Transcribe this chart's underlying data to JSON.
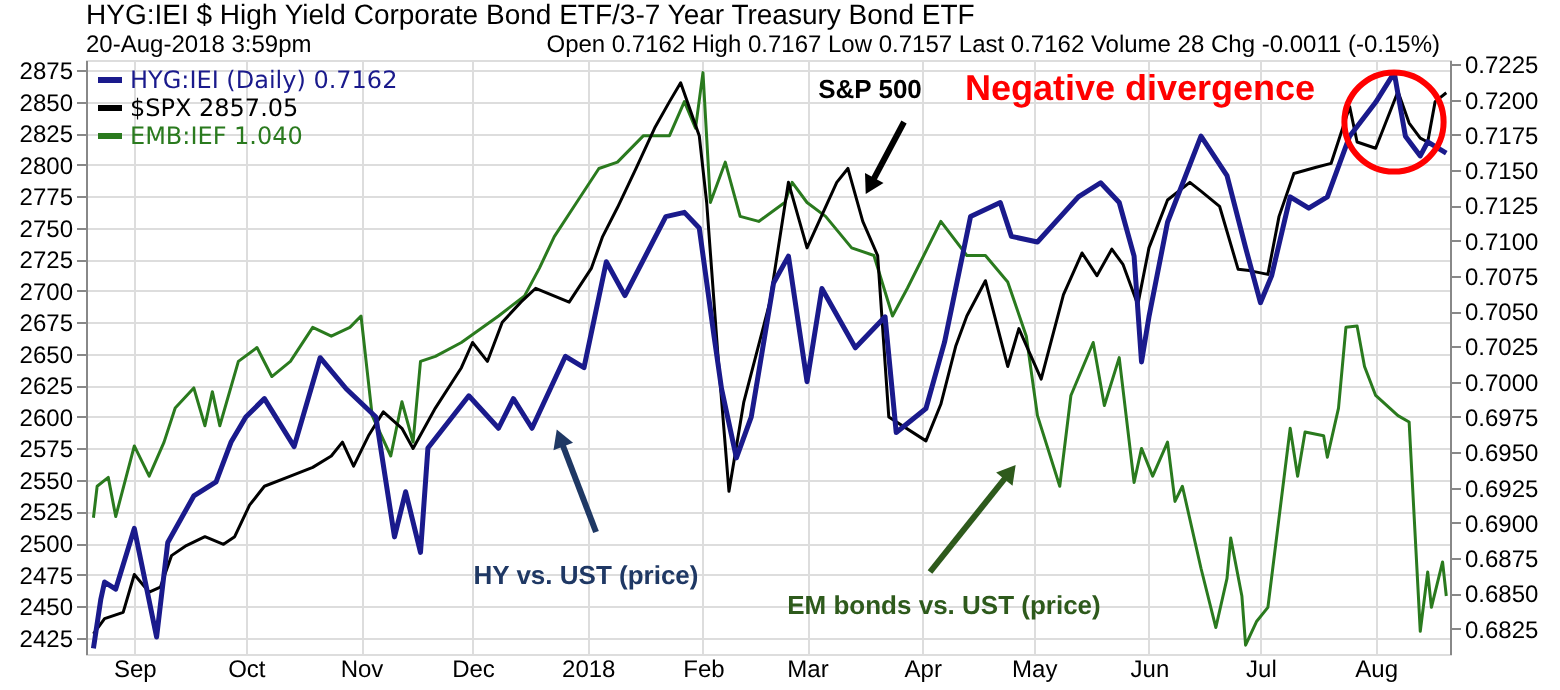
{
  "chart_data": {
    "type": "line",
    "title": "HYG:IEI $ High Yield Corporate Bond ETF/3-7 Year Treasury Bond ETF",
    "xlim": [
      "2017-08-19",
      "2018-08-21"
    ],
    "xticks": [
      {
        "value": "2017-09-01",
        "label": "Sep"
      },
      {
        "value": "2017-10-01",
        "label": "Oct"
      },
      {
        "value": "2017-11-01",
        "label": "Nov"
      },
      {
        "value": "2017-12-01",
        "label": "Dec"
      },
      {
        "value": "2018-01-01",
        "label": "2018"
      },
      {
        "value": "2018-02-01",
        "label": "Feb"
      },
      {
        "value": "2018-03-01",
        "label": "Mar"
      },
      {
        "value": "2018-04-01",
        "label": "Apr"
      },
      {
        "value": "2018-05-01",
        "label": "May"
      },
      {
        "value": "2018-06-01",
        "label": "Jun"
      },
      {
        "value": "2018-07-01",
        "label": "Jul"
      },
      {
        "value": "2018-08-01",
        "label": "Aug"
      }
    ],
    "ylim": [
      2412,
      2883
    ],
    "yticks": [
      2425,
      2450,
      2475,
      2500,
      2525,
      2550,
      2575,
      2600,
      2625,
      2650,
      2675,
      2700,
      2725,
      2750,
      2775,
      2800,
      2825,
      2850,
      2875
    ],
    "y2lim": [
      0.6807,
      0.7228
    ],
    "y2ticks": [
      {
        "value": 0.6825,
        "label": "0.6825"
      },
      {
        "value": 0.685,
        "label": "0.6850"
      },
      {
        "value": 0.6875,
        "label": "0.6875"
      },
      {
        "value": 0.69,
        "label": "0.6900"
      },
      {
        "value": 0.6925,
        "label": "0.6925"
      },
      {
        "value": 0.695,
        "label": "0.6950"
      },
      {
        "value": 0.6975,
        "label": "0.6975"
      },
      {
        "value": 0.7,
        "label": "0.7000"
      },
      {
        "value": 0.7025,
        "label": "0.7025"
      },
      {
        "value": 0.705,
        "label": "0.7050"
      },
      {
        "value": 0.7075,
        "label": "0.7075"
      },
      {
        "value": 0.71,
        "label": "0.7100"
      },
      {
        "value": 0.7125,
        "label": "0.7125"
      },
      {
        "value": 0.715,
        "label": "0.7150"
      },
      {
        "value": 0.7175,
        "label": "0.7175"
      },
      {
        "value": 0.72,
        "label": "0.7200"
      },
      {
        "value": 0.7225,
        "label": "0.7225"
      }
    ],
    "grid": true,
    "legend": "top left",
    "marker": "none",
    "line_style": "solid",
    "series": [
      {
        "name": "EMB:IEF 1.040",
        "color": "#2a7a1e",
        "x": [
          "2017-08-21",
          "2017-08-22",
          "2017-08-25",
          "2017-08-27",
          "2017-09-01",
          "2017-09-05",
          "2017-09-09",
          "2017-09-12",
          "2017-09-17",
          "2017-09-20",
          "2017-09-22",
          "2017-09-24",
          "2017-09-29",
          "2017-10-04",
          "2017-10-08",
          "2017-10-13",
          "2017-10-19",
          "2017-10-24",
          "2017-10-29",
          "2017-11-01",
          "2017-11-04",
          "2017-11-09",
          "2017-11-12",
          "2017-11-15",
          "2017-11-17",
          "2017-11-21",
          "2017-11-28",
          "2017-12-08",
          "2017-12-15",
          "2017-12-19",
          "2017-12-23",
          "2017-12-29",
          "2018-01-04",
          "2018-01-09",
          "2018-01-16",
          "2018-01-23",
          "2018-01-27",
          "2018-01-30",
          "2018-02-01",
          "2018-02-03",
          "2018-02-07",
          "2018-02-11",
          "2018-02-16",
          "2018-02-23",
          "2018-02-25",
          "2018-03-01",
          "2018-03-06",
          "2018-03-13",
          "2018-03-19",
          "2018-03-24",
          "2018-03-28",
          "2018-04-06",
          "2018-04-13",
          "2018-04-18",
          "2018-04-24",
          "2018-04-29",
          "2018-05-02",
          "2018-05-08",
          "2018-05-11",
          "2018-05-17",
          "2018-05-20",
          "2018-05-24",
          "2018-05-28",
          "2018-05-30",
          "2018-06-02",
          "2018-06-06",
          "2018-06-08",
          "2018-06-10",
          "2018-06-15",
          "2018-06-19",
          "2018-06-22",
          "2018-06-23",
          "2018-06-26",
          "2018-06-27",
          "2018-06-30",
          "2018-07-03",
          "2018-07-09",
          "2018-07-11",
          "2018-07-13",
          "2018-07-18",
          "2018-07-19",
          "2018-07-22",
          "2018-07-24",
          "2018-07-27",
          "2018-07-29",
          "2018-08-01",
          "2018-08-07",
          "2018-08-10",
          "2018-08-13",
          "2018-08-15",
          "2018-08-16",
          "2018-08-19",
          "2018-08-20"
        ],
        "values": [
          2520,
          2545,
          2552,
          2521,
          2577,
          2553,
          2580,
          2607,
          2623,
          2593,
          2620,
          2593,
          2644,
          2655,
          2632,
          2644,
          2671,
          2664,
          2671,
          2680,
          2601,
          2569,
          2612,
          2580,
          2644,
          2648,
          2659,
          2680,
          2696,
          2718,
          2743,
          2770,
          2797,
          2802,
          2823,
          2823,
          2850,
          2829,
          2873,
          2770,
          2802,
          2759,
          2755,
          2770,
          2786,
          2770,
          2759,
          2734,
          2728,
          2680,
          2702,
          2755,
          2728,
          2728,
          2707,
          2664,
          2601,
          2545,
          2617,
          2659,
          2609,
          2647,
          2548,
          2575,
          2553,
          2580,
          2533,
          2545,
          2480,
          2433,
          2472,
          2504,
          2458,
          2419,
          2438,
          2449,
          2591,
          2553,
          2588,
          2585,
          2568,
          2607,
          2671,
          2672,
          2640,
          2617,
          2601,
          2596,
          2430,
          2477,
          2449,
          2485,
          2458
        ]
      },
      {
        "name": "$SPX 2857.05",
        "color": "#000000",
        "x": [
          "2017-08-21",
          "2017-08-24",
          "2017-08-29",
          "2017-09-01",
          "2017-09-05",
          "2017-09-08",
          "2017-09-11",
          "2017-09-15",
          "2017-09-20",
          "2017-09-25",
          "2017-09-28",
          "2017-10-02",
          "2017-10-06",
          "2017-10-13",
          "2017-10-19",
          "2017-10-24",
          "2017-10-27",
          "2017-10-30",
          "2017-11-03",
          "2017-11-07",
          "2017-11-12",
          "2017-11-15",
          "2017-11-21",
          "2017-11-28",
          "2017-12-01",
          "2017-12-05",
          "2017-12-09",
          "2017-12-14",
          "2017-12-18",
          "2017-12-27",
          "2018-01-02",
          "2018-01-05",
          "2018-01-09",
          "2018-01-14",
          "2018-01-19",
          "2018-01-23",
          "2018-01-26",
          "2018-01-31",
          "2018-02-02",
          "2018-02-05",
          "2018-02-08",
          "2018-02-12",
          "2018-02-19",
          "2018-02-24",
          "2018-03-01",
          "2018-03-09",
          "2018-03-12",
          "2018-03-16",
          "2018-03-20",
          "2018-03-23",
          "2018-04-02",
          "2018-04-06",
          "2018-04-10",
          "2018-04-13",
          "2018-04-18",
          "2018-04-24",
          "2018-04-27",
          "2018-05-03",
          "2018-05-09",
          "2018-05-14",
          "2018-05-18",
          "2018-05-22",
          "2018-05-25",
          "2018-05-29",
          "2018-06-01",
          "2018-06-06",
          "2018-06-12",
          "2018-06-15",
          "2018-06-20",
          "2018-06-25",
          "2018-06-28",
          "2018-07-03",
          "2018-07-06",
          "2018-07-10",
          "2018-07-16",
          "2018-07-20",
          "2018-07-25",
          "2018-07-27",
          "2018-08-01",
          "2018-08-07",
          "2018-08-10",
          "2018-08-13",
          "2018-08-15",
          "2018-08-17",
          "2018-08-20"
        ],
        "values": [
          2428,
          2440,
          2445,
          2475,
          2461,
          2465,
          2490,
          2498,
          2505,
          2499,
          2505,
          2530,
          2545,
          2553,
          2560,
          2569,
          2580,
          2561,
          2585,
          2604,
          2591,
          2575,
          2607,
          2639,
          2659,
          2644,
          2675,
          2691,
          2702,
          2691,
          2718,
          2743,
          2766,
          2797,
          2829,
          2850,
          2865,
          2823,
          2770,
          2650,
          2541,
          2612,
          2691,
          2786,
          2734,
          2786,
          2797,
          2755,
          2728,
          2600,
          2581,
          2610,
          2656,
          2680,
          2708,
          2640,
          2670,
          2630,
          2697,
          2730,
          2712,
          2733,
          2721,
          2689,
          2734,
          2772,
          2786,
          2779,
          2767,
          2717,
          2716,
          2713,
          2759,
          2793,
          2798,
          2801,
          2846,
          2818,
          2813,
          2858,
          2833,
          2821,
          2818,
          2850,
          2857
        ]
      },
      {
        "name": "HYG:IEI (Daily) 0.7162",
        "color": "#1a1a8c",
        "axis": "y2",
        "x": [
          "2017-08-21",
          "2017-08-23",
          "2017-08-24",
          "2017-08-27",
          "2017-09-01",
          "2017-09-07",
          "2017-09-10",
          "2017-09-17",
          "2017-09-23",
          "2017-09-27",
          "2017-10-01",
          "2017-10-06",
          "2017-10-14",
          "2017-10-21",
          "2017-10-28",
          "2017-11-05",
          "2017-11-10",
          "2017-11-13",
          "2017-11-17",
          "2017-11-19",
          "2017-11-30",
          "2017-12-08",
          "2017-12-12",
          "2017-12-17",
          "2017-12-26",
          "2017-12-31",
          "2018-01-06",
          "2018-01-11",
          "2018-01-22",
          "2018-01-27",
          "2018-01-31",
          "2018-02-04",
          "2018-02-06",
          "2018-02-10",
          "2018-02-14",
          "2018-02-20",
          "2018-02-24",
          "2018-03-01",
          "2018-03-05",
          "2018-03-14",
          "2018-03-22",
          "2018-03-25",
          "2018-04-02",
          "2018-04-07",
          "2018-04-14",
          "2018-04-22",
          "2018-04-25",
          "2018-05-02",
          "2018-05-13",
          "2018-05-19",
          "2018-05-24",
          "2018-05-28",
          "2018-05-30",
          "2018-06-01",
          "2018-06-06",
          "2018-06-15",
          "2018-06-22",
          "2018-06-27",
          "2018-07-01",
          "2018-07-04",
          "2018-07-09",
          "2018-07-14",
          "2018-07-19",
          "2018-07-25",
          "2018-08-01",
          "2018-08-06",
          "2018-08-09",
          "2018-08-13",
          "2018-08-15",
          "2018-08-20"
        ],
        "values": [
          0.6811,
          0.6846,
          0.6858,
          0.6853,
          0.6896,
          0.6819,
          0.6886,
          0.6919,
          0.6929,
          0.6957,
          0.6975,
          0.6988,
          0.6954,
          0.7017,
          0.6995,
          0.6975,
          0.689,
          0.6922,
          0.6879,
          0.6953,
          0.699,
          0.6967,
          0.6988,
          0.6967,
          0.7018,
          0.701,
          0.7085,
          0.7061,
          0.7117,
          0.712,
          0.7109,
          0.7032,
          0.6995,
          0.6946,
          0.6975,
          0.707,
          0.7089,
          0.7,
          0.7066,
          0.7024,
          0.7046,
          0.6964,
          0.6981,
          0.7028,
          0.7117,
          0.7127,
          0.7103,
          0.7099,
          0.7131,
          0.7141,
          0.7127,
          0.7089,
          0.7014,
          0.7046,
          0.7113,
          0.7174,
          0.7146,
          0.7095,
          0.7056,
          0.7075,
          0.7131,
          0.7123,
          0.7131,
          0.7174,
          0.7198,
          0.7219,
          0.7174,
          0.716,
          0.717,
          0.7162
        ]
      }
    ],
    "annotations": [
      "20-Aug-2018 3:59pm",
      "Open 0.7162  High 0.7167  Low 0.7157  Last 0.7162  Volume 28  Chg -0.0011 (-0.15%)",
      "S&P 500",
      "Negative divergence",
      "HY vs. UST (price)",
      "EM bonds vs. UST (price)"
    ]
  }
}
